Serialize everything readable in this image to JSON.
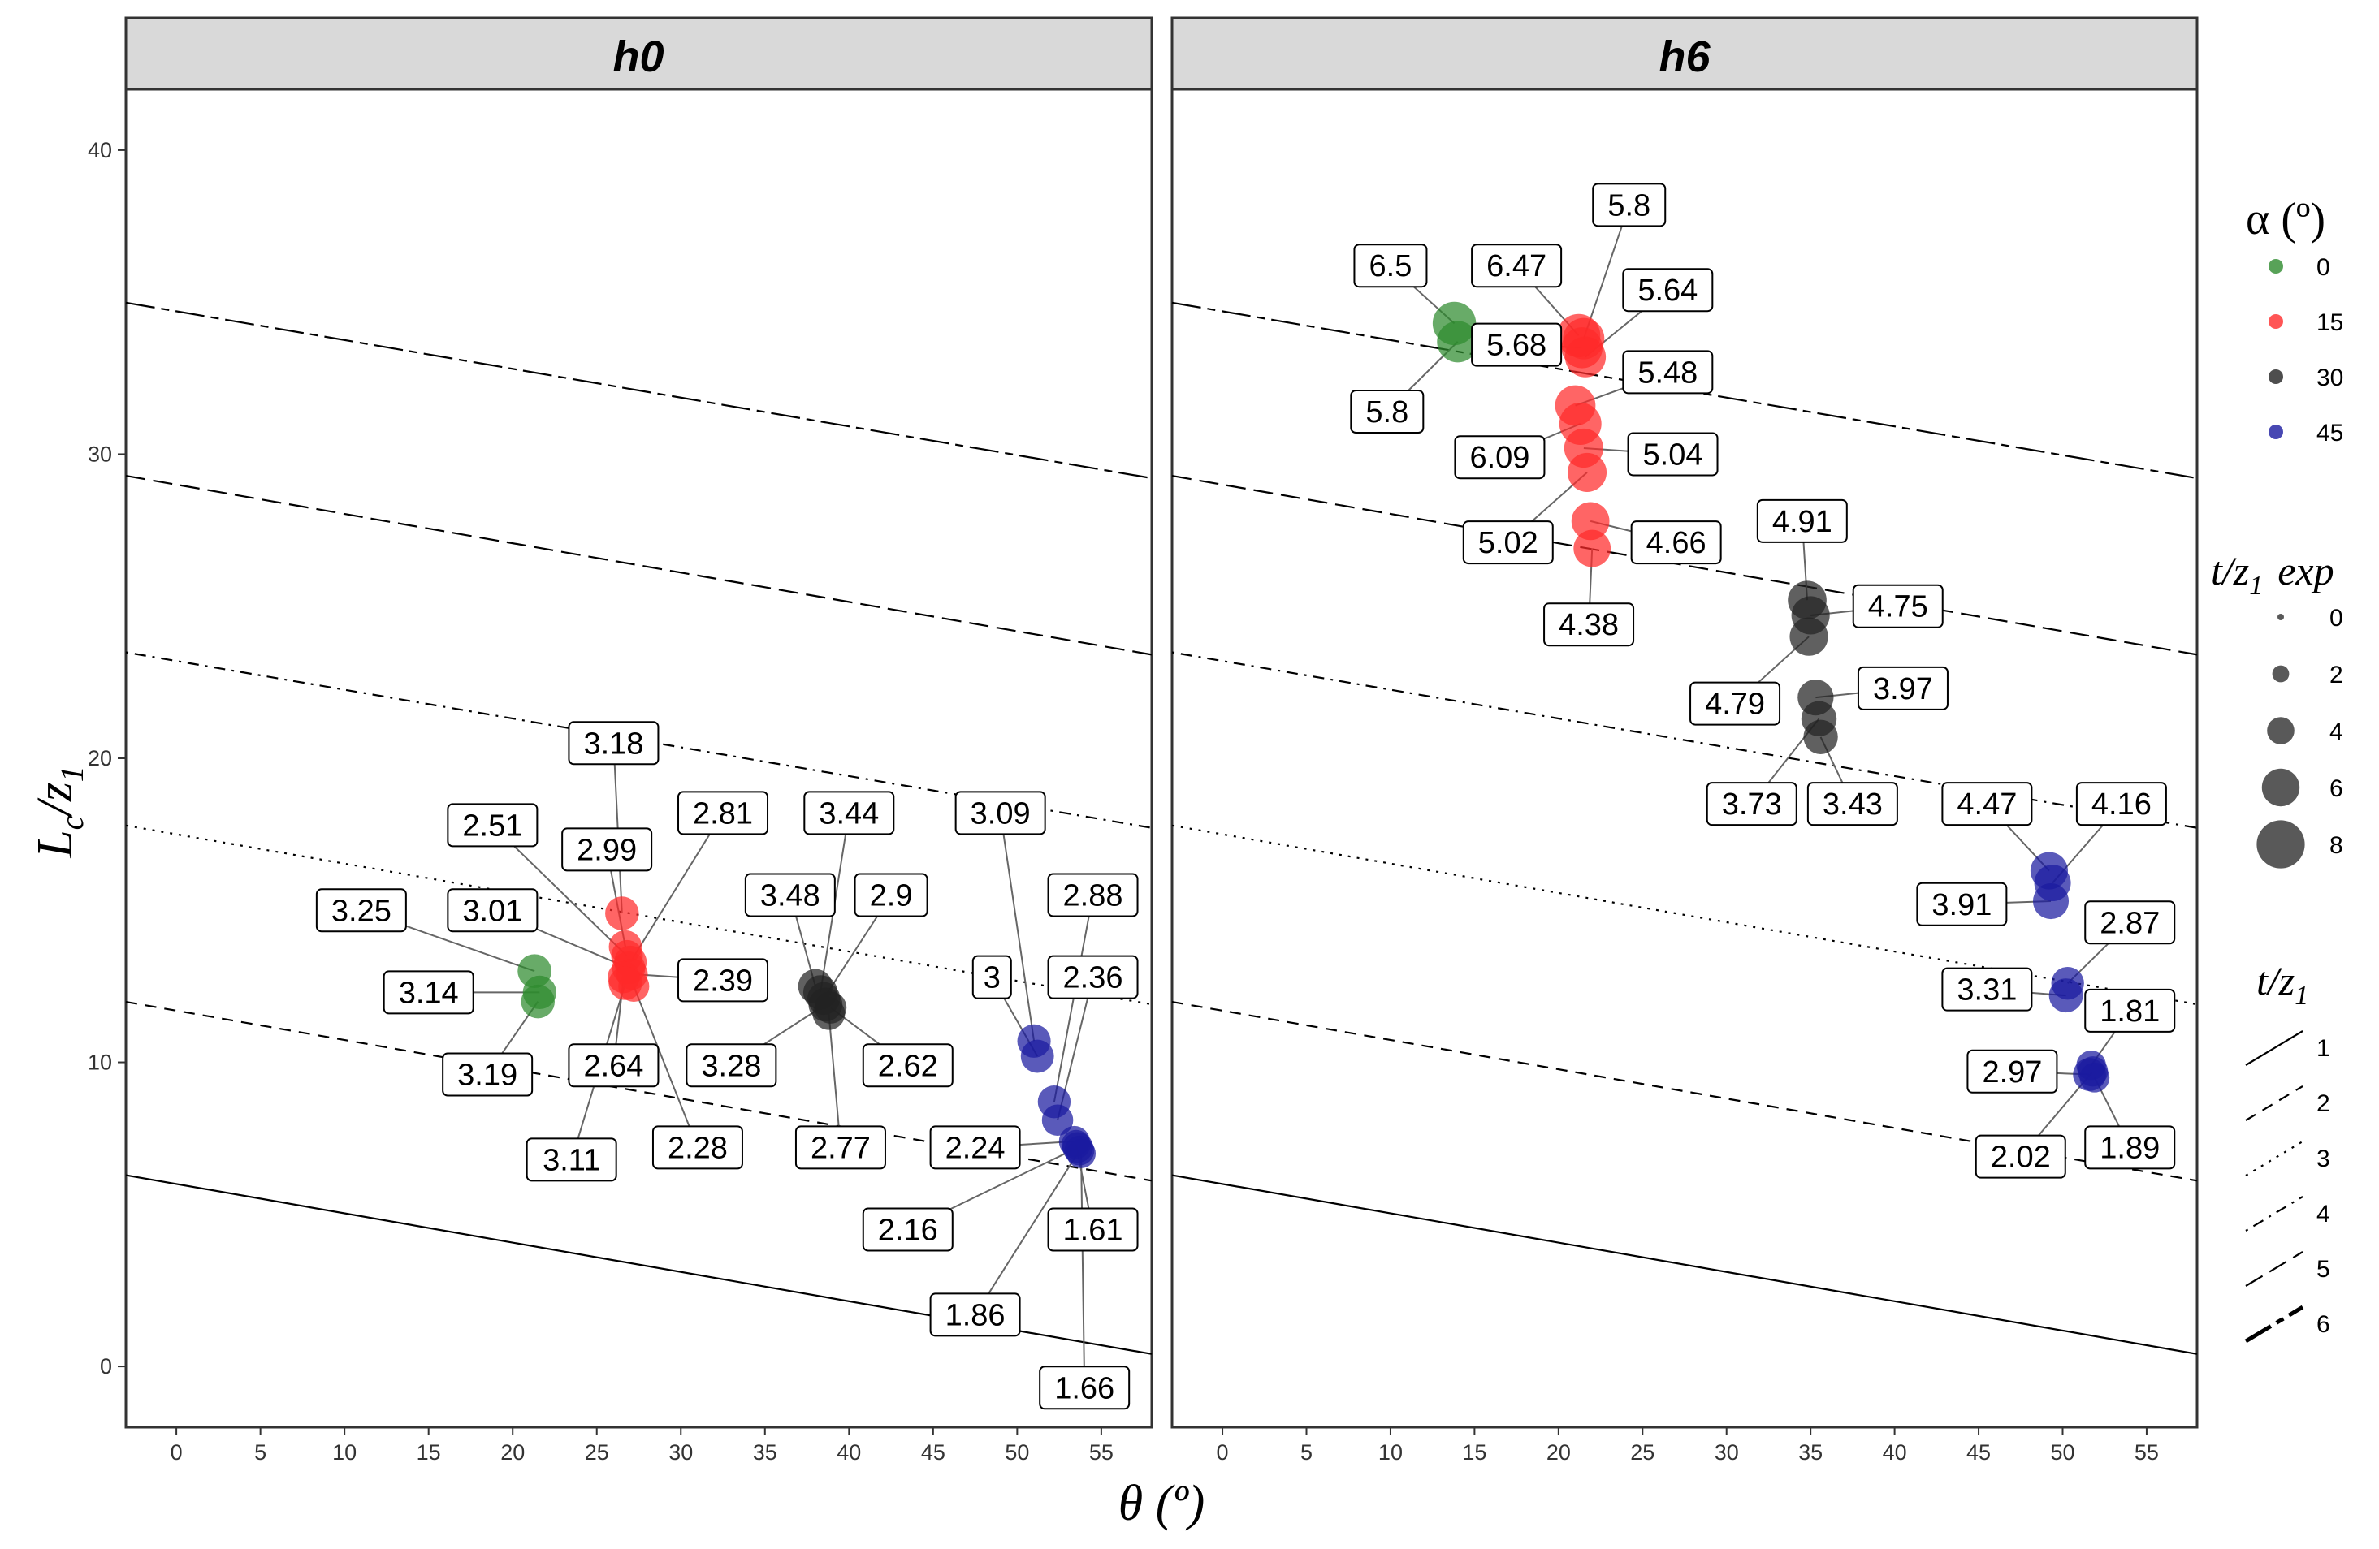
{
  "chart_data": {
    "type": "scatter",
    "xlabel": "θ (º)",
    "ylabel": "Lc/z1",
    "xlim": [
      -3,
      58
    ],
    "ylim": [
      -2,
      42
    ],
    "x_ticks": [
      0,
      5,
      10,
      15,
      20,
      25,
      30,
      35,
      40,
      45,
      50,
      55
    ],
    "y_ticks": [
      0,
      10,
      20,
      30,
      40
    ],
    "reference_lines": [
      {
        "t_z1": "1",
        "y0": 6.0,
        "y56": 0.6
      },
      {
        "t_z1": "2",
        "y0": 11.7,
        "y56": 6.3
      },
      {
        "t_z1": "3",
        "y0": 17.5,
        "y56": 12.1
      },
      {
        "t_z1": "4",
        "y0": 23.2,
        "y56": 17.9
      },
      {
        "t_z1": "5",
        "y0": 29.0,
        "y56": 23.6
      },
      {
        "t_z1": "6",
        "y0": 34.7,
        "y56": 29.4
      }
    ],
    "panels": [
      {
        "title": "h0",
        "points": [
          {
            "x": 21.3,
            "y": 13.0,
            "alpha": "0",
            "label": "3.25",
            "lx": 11,
            "ly": 15.0
          },
          {
            "x": 21.6,
            "y": 12.3,
            "alpha": "0",
            "label": "3.14",
            "lx": 15,
            "ly": 12.3
          },
          {
            "x": 21.5,
            "y": 12.0,
            "alpha": "0",
            "label": "3.19",
            "lx": 18.5,
            "ly": 9.6
          },
          {
            "x": 26.5,
            "y": 14.9,
            "alpha": "15",
            "label": "3.18",
            "lx": 26,
            "ly": 20.5
          },
          {
            "x": 26.7,
            "y": 13.8,
            "alpha": "15",
            "label": "2.99",
            "lx": 25.6,
            "ly": 17.0
          },
          {
            "x": 26.8,
            "y": 13.5,
            "alpha": "15",
            "label": "2.51",
            "lx": 18.8,
            "ly": 17.8
          },
          {
            "x": 27.0,
            "y": 13.3,
            "alpha": "15",
            "label": "2.81",
            "lx": 32.5,
            "ly": 18.2
          },
          {
            "x": 26.9,
            "y": 13.1,
            "alpha": "15",
            "label": "3.01",
            "lx": 18.8,
            "ly": 15.0
          },
          {
            "x": 27.1,
            "y": 12.9,
            "alpha": "15",
            "label": "2.39",
            "lx": 32.5,
            "ly": 12.7
          },
          {
            "x": 26.6,
            "y": 12.8,
            "alpha": "15",
            "label": "2.64",
            "lx": 26.0,
            "ly": 9.9
          },
          {
            "x": 27.2,
            "y": 12.5,
            "alpha": "15",
            "label": "2.28",
            "lx": 31,
            "ly": 7.2
          },
          {
            "x": 26.7,
            "y": 12.6,
            "alpha": "15",
            "label": "3.11",
            "lx": 23.5,
            "ly": 6.8
          },
          {
            "x": 38.0,
            "y": 12.5,
            "alpha": "30",
            "label": "3.48",
            "lx": 36.5,
            "ly": 15.5
          },
          {
            "x": 38.3,
            "y": 12.3,
            "alpha": "30",
            "label": "3.44",
            "lx": 40,
            "ly": 18.2
          },
          {
            "x": 38.5,
            "y": 12.1,
            "alpha": "30",
            "label": "2.9",
            "lx": 42.5,
            "ly": 15.5
          },
          {
            "x": 38.6,
            "y": 11.9,
            "alpha": "30",
            "label": "3.28",
            "lx": 33,
            "ly": 9.9
          },
          {
            "x": 38.9,
            "y": 11.8,
            "alpha": "30",
            "label": "2.62",
            "lx": 43.5,
            "ly": 9.9
          },
          {
            "x": 38.8,
            "y": 11.6,
            "alpha": "30",
            "label": "2.77",
            "lx": 39.5,
            "ly": 7.2
          },
          {
            "x": 51.0,
            "y": 10.7,
            "alpha": "45",
            "label": "3.09",
            "lx": 49,
            "ly": 18.2
          },
          {
            "x": 51.2,
            "y": 10.2,
            "alpha": "45",
            "label": "3",
            "lx": 48.5,
            "ly": 12.8
          },
          {
            "x": 52.2,
            "y": 8.7,
            "alpha": "45",
            "label": "2.88",
            "lx": 54.5,
            "ly": 15.5
          },
          {
            "x": 52.4,
            "y": 8.1,
            "alpha": "45",
            "label": "2.36",
            "lx": 54.5,
            "ly": 12.8
          },
          {
            "x": 53.4,
            "y": 7.4,
            "alpha": "45",
            "label": "2.24",
            "lx": 47.5,
            "ly": 7.2
          },
          {
            "x": 53.6,
            "y": 7.2,
            "alpha": "45",
            "label": "2.16",
            "lx": 43.5,
            "ly": 4.5
          },
          {
            "x": 53.5,
            "y": 7.3,
            "alpha": "45",
            "label": "1.61",
            "lx": 54.5,
            "ly": 4.5
          },
          {
            "x": 53.7,
            "y": 7.1,
            "alpha": "45",
            "label": "1.86",
            "lx": 47.5,
            "ly": 1.7
          },
          {
            "x": 53.8,
            "y": 7.0,
            "alpha": "45",
            "label": "1.66",
            "lx": 54,
            "ly": -0.7
          }
        ]
      },
      {
        "title": "h6",
        "points": [
          {
            "x": 13.8,
            "y": 34.3,
            "alpha": "0",
            "label": "6.5",
            "lx": 10,
            "ly": 36.2
          },
          {
            "x": 14.0,
            "y": 33.7,
            "alpha": "0",
            "label": "5.8",
            "lx": 9.8,
            "ly": 31.4
          },
          {
            "x": 21.2,
            "y": 33.9,
            "alpha": "15",
            "label": "6.47",
            "lx": 17.5,
            "ly": 36.2
          },
          {
            "x": 21.5,
            "y": 33.8,
            "alpha": "15",
            "label": "5.8",
            "lx": 24.2,
            "ly": 38.2
          },
          {
            "x": 21.4,
            "y": 33.5,
            "alpha": "15",
            "label": "5.68",
            "lx": 17.5,
            "ly": 33.6
          },
          {
            "x": 21.6,
            "y": 33.2,
            "alpha": "15",
            "label": "5.64",
            "lx": 26.5,
            "ly": 35.4
          },
          {
            "x": 21.0,
            "y": 31.6,
            "alpha": "15",
            "label": "5.48",
            "lx": 26.5,
            "ly": 32.7
          },
          {
            "x": 21.3,
            "y": 31.0,
            "alpha": "15",
            "label": "6.09",
            "lx": 16.5,
            "ly": 29.9
          },
          {
            "x": 21.5,
            "y": 30.2,
            "alpha": "15",
            "label": "5.04",
            "lx": 26.8,
            "ly": 30.0
          },
          {
            "x": 21.7,
            "y": 29.4,
            "alpha": "15",
            "label": "5.02",
            "lx": 17,
            "ly": 27.1
          },
          {
            "x": 21.9,
            "y": 27.8,
            "alpha": "15",
            "label": "4.66",
            "lx": 27,
            "ly": 27.1
          },
          {
            "x": 22.0,
            "y": 26.9,
            "alpha": "15",
            "label": "4.38",
            "lx": 21.8,
            "ly": 24.4
          },
          {
            "x": 34.8,
            "y": 25.2,
            "alpha": "30",
            "label": "4.91",
            "lx": 34.5,
            "ly": 27.8
          },
          {
            "x": 35.0,
            "y": 24.7,
            "alpha": "30",
            "label": "4.75",
            "lx": 40.2,
            "ly": 25.0
          },
          {
            "x": 34.9,
            "y": 24.0,
            "alpha": "30",
            "label": "4.79",
            "lx": 30.5,
            "ly": 21.8
          },
          {
            "x": 35.3,
            "y": 22.0,
            "alpha": "30",
            "label": "3.97",
            "lx": 40.5,
            "ly": 22.3
          },
          {
            "x": 35.5,
            "y": 21.3,
            "alpha": "30",
            "label": "3.73",
            "lx": 31.5,
            "ly": 18.5
          },
          {
            "x": 35.6,
            "y": 20.7,
            "alpha": "30",
            "label": "3.43",
            "lx": 37.5,
            "ly": 18.5
          },
          {
            "x": 49.2,
            "y": 16.3,
            "alpha": "45",
            "label": "4.47",
            "lx": 45.5,
            "ly": 18.5
          },
          {
            "x": 49.4,
            "y": 15.9,
            "alpha": "45",
            "label": "4.16",
            "lx": 53.5,
            "ly": 18.5
          },
          {
            "x": 49.3,
            "y": 15.3,
            "alpha": "45",
            "label": "3.91",
            "lx": 44,
            "ly": 15.2
          },
          {
            "x": 50.3,
            "y": 12.6,
            "alpha": "45",
            "label": "2.87",
            "lx": 54,
            "ly": 14.6
          },
          {
            "x": 50.2,
            "y": 12.2,
            "alpha": "45",
            "label": "3.31",
            "lx": 45.5,
            "ly": 12.4
          },
          {
            "x": 51.7,
            "y": 9.9,
            "alpha": "45",
            "label": "1.81",
            "lx": 54,
            "ly": 11.7
          },
          {
            "x": 51.6,
            "y": 9.6,
            "alpha": "45",
            "label": "2.97",
            "lx": 47,
            "ly": 9.7
          },
          {
            "x": 51.8,
            "y": 9.7,
            "alpha": "45",
            "label": "2.02",
            "lx": 47.5,
            "ly": 6.9
          },
          {
            "x": 51.9,
            "y": 9.5,
            "alpha": "45",
            "label": "1.89",
            "lx": 54,
            "ly": 7.2
          }
        ]
      }
    ],
    "legend": {
      "color": {
        "title": "α (º)",
        "entries": [
          {
            "label": "0",
            "color": "#2e8b2e"
          },
          {
            "label": "15",
            "color": "#ff2a2a"
          },
          {
            "label": "30",
            "color": "#222222"
          },
          {
            "label": "45",
            "color": "#1a1aa0"
          }
        ]
      },
      "size": {
        "title_main": "t/z",
        "title_sub": "1",
        "title_suffix": "exp",
        "entries": [
          "0",
          "2",
          "4",
          "6",
          "8"
        ]
      },
      "linetype": {
        "title_main": "t/z",
        "title_sub": "1",
        "entries": [
          "1",
          "2",
          "3",
          "4",
          "5",
          "6"
        ]
      }
    }
  },
  "axes": {
    "x_title": "θ (º)",
    "y_title_main": "L",
    "y_title_sub1": "c",
    "y_title_slash": "/z",
    "y_title_sub2": "1"
  }
}
